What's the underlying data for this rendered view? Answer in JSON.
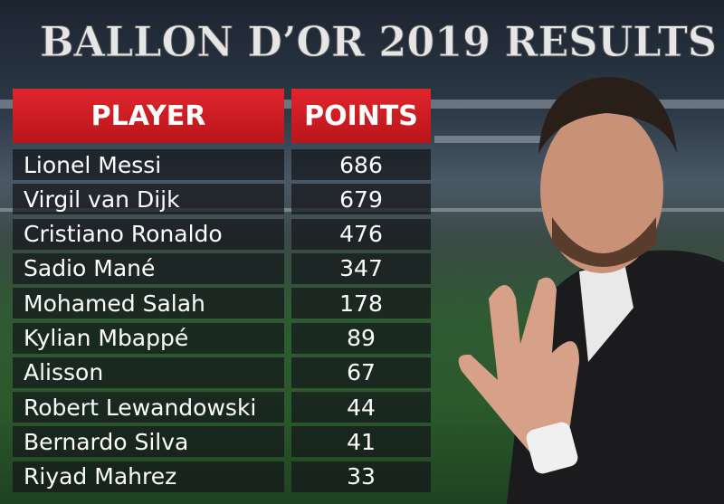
{
  "header": {
    "title": "BALLON D’OR 2019 RESULTS"
  },
  "table": {
    "columns": [
      "PLAYER",
      "POINTS"
    ],
    "rows": [
      [
        "Lionel Messi",
        686
      ],
      [
        "Virgil van Dijk",
        679
      ],
      [
        "Cristiano Ronaldo",
        476
      ],
      [
        "Sadio Mané",
        347
      ],
      [
        "Mohamed Salah",
        178
      ],
      [
        "Kylian Mbappé",
        89
      ],
      [
        "Alisson",
        67
      ],
      [
        "Robert Lewandowski",
        44
      ],
      [
        "Bernardo Silva",
        41
      ],
      [
        "Riyad Mahrez",
        33
      ]
    ]
  }
}
